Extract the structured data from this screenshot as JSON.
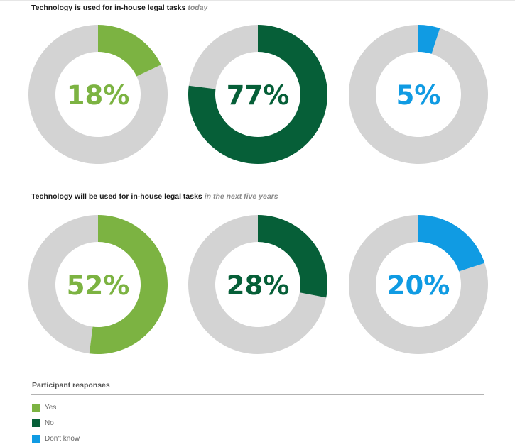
{
  "colors": {
    "yes": "#7cb342",
    "no": "#065f38",
    "dont_know": "#109be3",
    "track": "#d3d3d3"
  },
  "chart_data": [
    {
      "type": "pie",
      "title": "Technology is used for in-house legal tasks",
      "title_emphasis": "today",
      "series": [
        {
          "name": "Yes",
          "value": 18,
          "label": "18%",
          "color": "#7cb342"
        },
        {
          "name": "No",
          "value": 77,
          "label": "77%",
          "color": "#065f38"
        },
        {
          "name": "Don't know",
          "value": 5,
          "label": "5%",
          "color": "#109be3"
        }
      ]
    },
    {
      "type": "pie",
      "title": "Technology will be used for in-house legal tasks",
      "title_emphasis": "in the next five years",
      "series": [
        {
          "name": "Yes",
          "value": 52,
          "label": "52%",
          "color": "#7cb342"
        },
        {
          "name": "No",
          "value": 28,
          "label": "28%",
          "color": "#065f38"
        },
        {
          "name": "Don't know",
          "value": 20,
          "label": "20%",
          "color": "#109be3"
        }
      ]
    }
  ],
  "legend": {
    "title": "Participant responses",
    "items": [
      {
        "label": "Yes",
        "color": "#7cb342"
      },
      {
        "label": "No",
        "color": "#065f38"
      },
      {
        "label": "Don't know",
        "color": "#109be3"
      }
    ]
  }
}
